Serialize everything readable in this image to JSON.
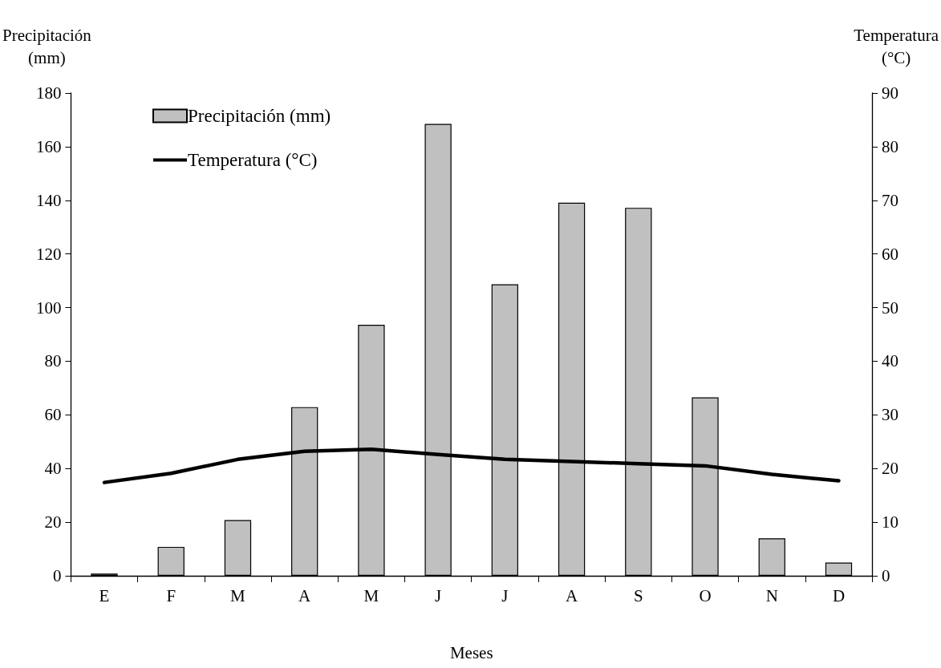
{
  "chart_data": {
    "type": "bar",
    "xlabel": "Meses",
    "ylabel": "Precipitación\n(mm)",
    "y2label": "Temperatura\n(°C)",
    "categories": [
      "E",
      "F",
      "M",
      "A",
      "M",
      "J",
      "J",
      "A",
      "S",
      "O",
      "N",
      "D"
    ],
    "series": [
      {
        "name": "Precipitación (mm)",
        "color": "#c0c0c0",
        "values": [
          0.8,
          10.8,
          20.8,
          62.9,
          93.6,
          168.5,
          108.7,
          139.1,
          137.2,
          66.5,
          14.0,
          4.9
        ]
      },
      {
        "name": "Temperatura (°C)",
        "type": "line",
        "axis": "y2",
        "color": "#000000",
        "values": [
          17.4,
          19.1,
          21.7,
          23.2,
          23.6,
          22.6,
          21.7,
          21.3,
          20.9,
          20.5,
          18.9,
          17.7
        ]
      }
    ],
    "ylim": [
      0,
      180
    ],
    "yticks": [
      0,
      20,
      40,
      60,
      80,
      100,
      120,
      140,
      160,
      180
    ],
    "y2lim": [
      0,
      90
    ],
    "y2ticks": [
      0,
      10,
      20,
      30,
      40,
      50,
      60,
      70,
      80,
      90
    ],
    "legend": "top left",
    "grid": false,
    "marker": "none",
    "line_style": "solid"
  }
}
